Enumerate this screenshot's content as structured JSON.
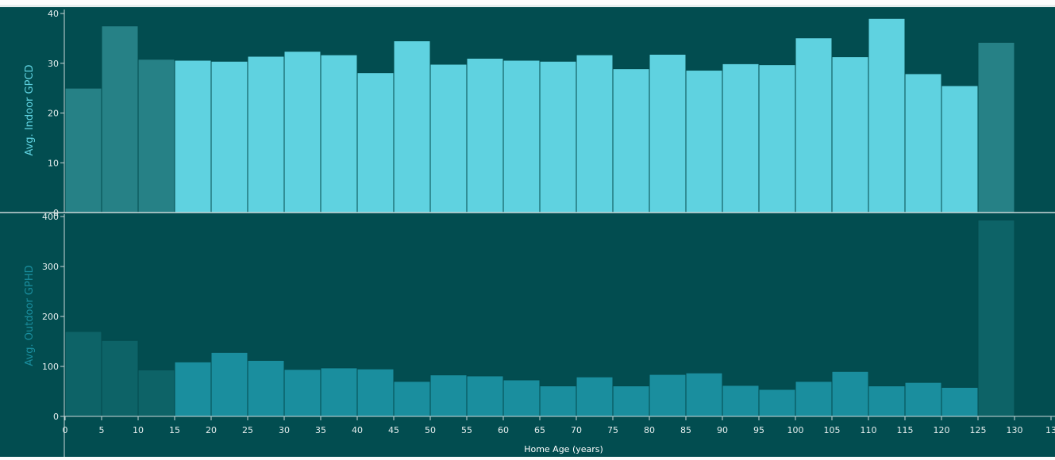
{
  "colors": {
    "background": "#024d50",
    "axis": "#c9d7d7",
    "tick_text": "#e6eeee",
    "top_bar": "#5fd2e0",
    "top_bar_dim": "#268186",
    "bottom_bar": "#1a8e9e",
    "bottom_bar_dim": "#0d6367",
    "top_ylabel": "#5fd2e0",
    "bottom_ylabel": "#1a8e9e",
    "bar_stroke": "#034a4d"
  },
  "chart_data": [
    {
      "type": "bar",
      "title": "",
      "xlabel": "",
      "ylabel": "Avg. Indoor GPCD",
      "ylim": [
        0,
        40
      ],
      "yticks": [
        0,
        10,
        20,
        30,
        40
      ],
      "bin_width": 5,
      "bin_starts": [
        0,
        5,
        10,
        15,
        20,
        25,
        30,
        35,
        40,
        45,
        50,
        55,
        60,
        65,
        70,
        75,
        80,
        85,
        90,
        95,
        100,
        105,
        110,
        115,
        120,
        125
      ],
      "values": [
        25.0,
        37.5,
        30.8,
        30.6,
        30.4,
        31.4,
        32.4,
        31.7,
        28.1,
        34.5,
        29.8,
        31.0,
        30.6,
        30.4,
        31.7,
        28.9,
        31.8,
        28.6,
        29.9,
        29.7,
        35.1,
        31.3,
        39.0,
        27.9,
        25.5,
        34.2
      ],
      "highlighted": [
        false,
        false,
        false,
        true,
        true,
        true,
        true,
        true,
        true,
        true,
        true,
        true,
        true,
        true,
        true,
        true,
        true,
        true,
        true,
        true,
        true,
        true,
        true,
        true,
        true,
        false
      ]
    },
    {
      "type": "bar",
      "title": "",
      "xlabel": "Home Age (years)",
      "ylabel": "Avg. Outdoor GPHD",
      "ylim": [
        0,
        400
      ],
      "yticks": [
        0,
        100,
        200,
        300,
        400
      ],
      "xlim": [
        0,
        135
      ],
      "xticks": [
        "0",
        "5",
        "10",
        "15",
        "20",
        "25",
        "30",
        "35",
        "40",
        "45",
        "50",
        "55",
        "60",
        "65",
        "70",
        "75",
        "80",
        "85",
        "90",
        "95",
        "100",
        "105",
        "110",
        "115",
        "120",
        "125",
        "130",
        "13"
      ],
      "bin_width": 5,
      "bin_starts": [
        0,
        5,
        10,
        15,
        20,
        25,
        30,
        35,
        40,
        45,
        50,
        55,
        60,
        65,
        70,
        75,
        80,
        85,
        90,
        95,
        100,
        105,
        110,
        115,
        120,
        125
      ],
      "values": [
        170,
        152,
        93,
        109,
        128,
        112,
        94,
        97,
        95,
        70,
        83,
        81,
        73,
        61,
        79,
        61,
        84,
        87,
        62,
        54,
        70,
        90,
        61,
        68,
        58,
        393
      ],
      "highlighted": [
        false,
        false,
        false,
        true,
        true,
        true,
        true,
        true,
        true,
        true,
        true,
        true,
        true,
        true,
        true,
        true,
        true,
        true,
        true,
        true,
        true,
        true,
        true,
        true,
        true,
        false
      ]
    }
  ]
}
